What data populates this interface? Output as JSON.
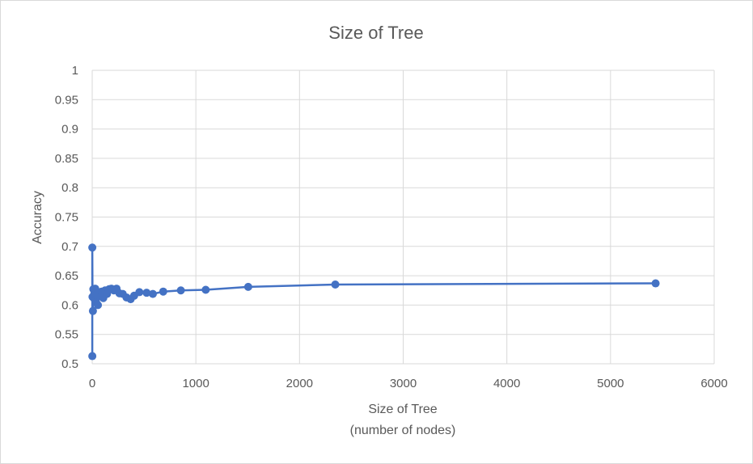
{
  "chart_data": {
    "type": "line",
    "title": "Size of Tree",
    "xlabel": [
      "Size of Tree",
      "(number of nodes)"
    ],
    "ylabel": "Accuracy",
    "xlim": [
      0,
      6000
    ],
    "ylim": [
      0.5,
      1
    ],
    "xticks": [
      "0",
      "1000",
      "2000",
      "3000",
      "4000",
      "5000",
      "6000"
    ],
    "yticks": [
      "0.5",
      "0.55",
      "0.6",
      "0.65",
      "0.7",
      "0.75",
      "0.8",
      "0.85",
      "0.9",
      "0.95",
      "1"
    ],
    "grid": true,
    "marker": "circle",
    "series": [
      {
        "color": "#4472C4",
        "points": [
          [
            1,
            0.513
          ],
          [
            1,
            0.698
          ],
          [
            3,
            0.614
          ],
          [
            7,
            0.59
          ],
          [
            11,
            0.627
          ],
          [
            15,
            0.612
          ],
          [
            21,
            0.62
          ],
          [
            29,
            0.628
          ],
          [
            37,
            0.605
          ],
          [
            45,
            0.618
          ],
          [
            55,
            0.6
          ],
          [
            65,
            0.622
          ],
          [
            77,
            0.615
          ],
          [
            91,
            0.623
          ],
          [
            107,
            0.612
          ],
          [
            125,
            0.625
          ],
          [
            143,
            0.619
          ],
          [
            163,
            0.627
          ],
          [
            185,
            0.628
          ],
          [
            209,
            0.625
          ],
          [
            235,
            0.628
          ],
          [
            263,
            0.62
          ],
          [
            295,
            0.619
          ],
          [
            331,
            0.613
          ],
          [
            371,
            0.61
          ],
          [
            405,
            0.616
          ],
          [
            455,
            0.622
          ],
          [
            525,
            0.621
          ],
          [
            585,
            0.619
          ],
          [
            685,
            0.623
          ],
          [
            855,
            0.625
          ],
          [
            1095,
            0.626
          ],
          [
            1505,
            0.631
          ],
          [
            2345,
            0.635
          ],
          [
            5435,
            0.637
          ]
        ]
      }
    ]
  }
}
